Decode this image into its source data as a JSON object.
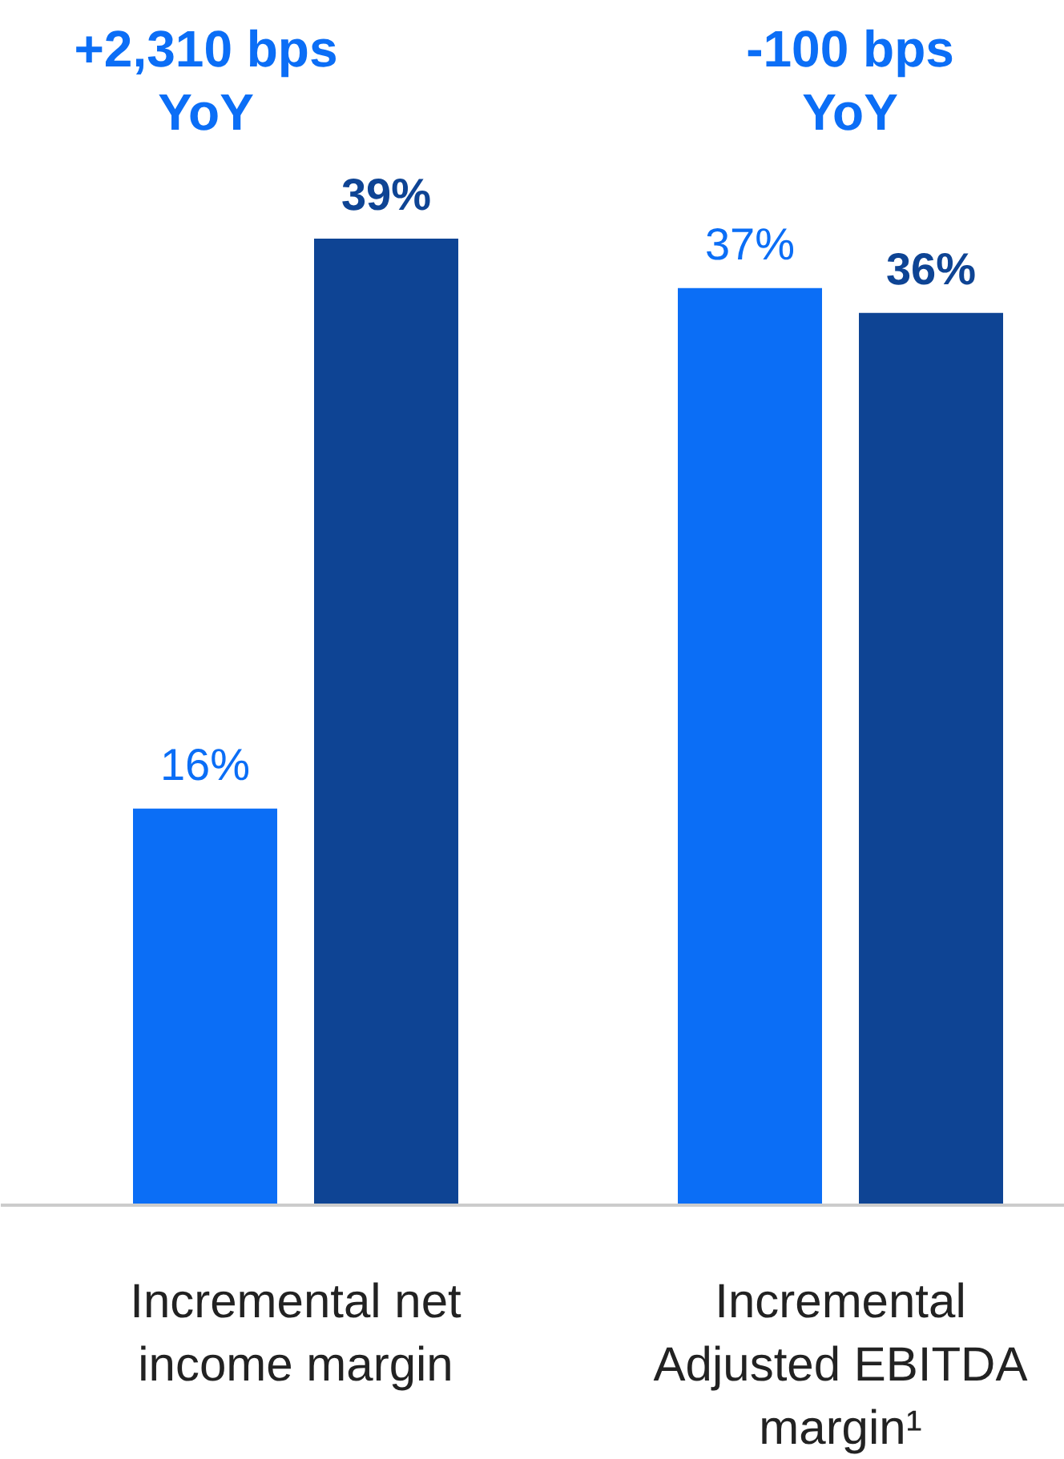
{
  "chart_data": {
    "type": "bar",
    "categories": [
      "Incremental net income margin",
      "Incremental Adjusted EBITDA margin¹"
    ],
    "series": [
      {
        "color": "#0b6ef6",
        "values": [
          16,
          37
        ],
        "value_labels": [
          "16%",
          "37%"
        ]
      },
      {
        "color": "#0e4494",
        "values": [
          39,
          36
        ],
        "value_labels": [
          "39%",
          "36%"
        ]
      }
    ],
    "grid": false,
    "annotations": [
      "+2,310 bps YoY",
      "-100 bps YoY"
    ]
  }
}
